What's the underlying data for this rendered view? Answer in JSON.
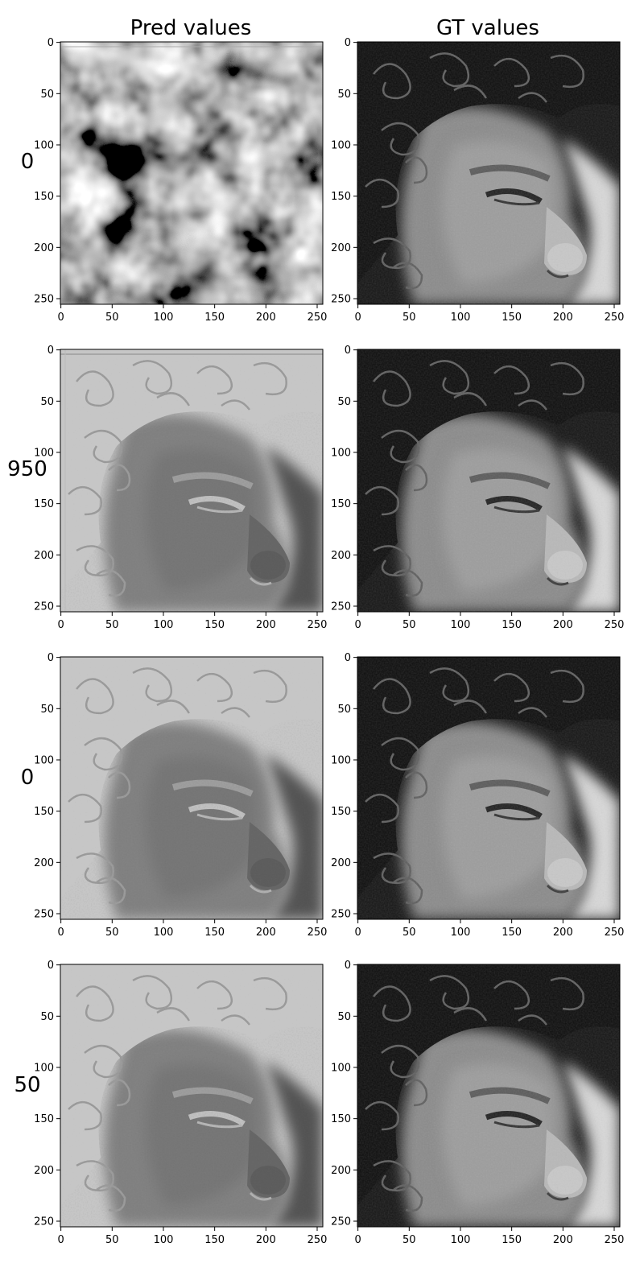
{
  "columns": [
    {
      "title": "Pred values"
    },
    {
      "title": "GT values"
    }
  ],
  "rows": [
    {
      "label": "0"
    },
    {
      "label": "950"
    },
    {
      "label": "0"
    },
    {
      "label": "50"
    }
  ],
  "chart_data": {
    "type": "heatmap",
    "layout": "grid 4 rows x 2 columns",
    "colormap": "gray",
    "x_range": [
      0,
      255
    ],
    "y_range": [
      0,
      255
    ],
    "y_inverted": true,
    "x_ticks": [
      0,
      50,
      100,
      150,
      200,
      250
    ],
    "y_ticks": [
      0,
      50,
      100,
      150,
      200,
      250
    ],
    "grid": false,
    "panels": [
      {
        "row": 0,
        "col": 0,
        "content": "noise"
      },
      {
        "row": 0,
        "col": 1,
        "content": "face"
      },
      {
        "row": 1,
        "col": 0,
        "content": "inverted-face"
      },
      {
        "row": 1,
        "col": 1,
        "content": "face"
      },
      {
        "row": 2,
        "col": 0,
        "content": "inverted-face"
      },
      {
        "row": 2,
        "col": 1,
        "content": "face"
      },
      {
        "row": 3,
        "col": 0,
        "content": "inverted-face"
      },
      {
        "row": 3,
        "col": 1,
        "content": "face"
      }
    ]
  }
}
